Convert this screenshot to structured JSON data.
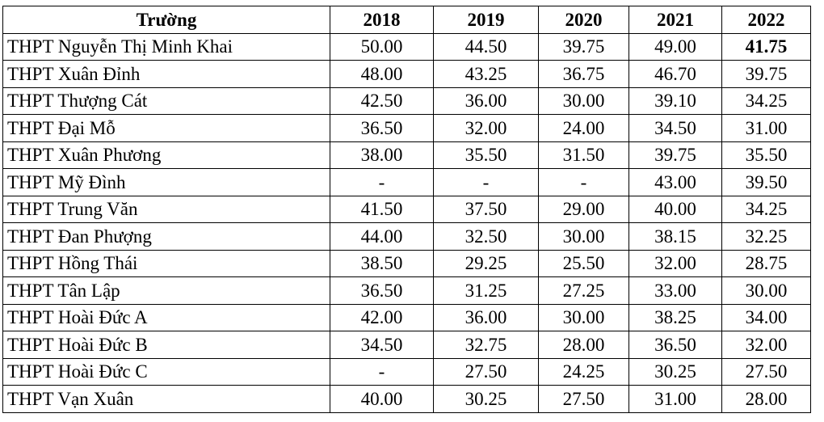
{
  "table": {
    "headers": [
      "Trường",
      "2018",
      "2019",
      "2020",
      "2021",
      "2022"
    ],
    "rows": [
      [
        "THPT Nguyễn Thị Minh Khai",
        "50.00",
        "44.50",
        "39.75",
        "49.00",
        "41.75"
      ],
      [
        "THPT Xuân Đỉnh",
        "48.00",
        "43.25",
        "36.75",
        "46.70",
        "39.75"
      ],
      [
        "THPT Thượng Cát",
        "42.50",
        "36.00",
        "30.00",
        "39.10",
        "34.25"
      ],
      [
        "THPT Đại Mỗ",
        "36.50",
        "32.00",
        "24.00",
        "34.50",
        "31.00"
      ],
      [
        "THPT Xuân Phương",
        "38.00",
        "35.50",
        "31.50",
        "39.75",
        "35.50"
      ],
      [
        "THPT Mỹ Đình",
        "-",
        "-",
        "-",
        "43.00",
        "39.50"
      ],
      [
        "THPT Trung Văn",
        "41.50",
        "37.50",
        "29.00",
        "40.00",
        "34.25"
      ],
      [
        "THPT Đan Phượng",
        "44.00",
        "32.50",
        "30.00",
        "38.15",
        "32.25"
      ],
      [
        "THPT Hồng Thái",
        "38.50",
        "29.25",
        "25.50",
        "32.00",
        "28.75"
      ],
      [
        "THPT Tân Lập",
        "36.50",
        "31.25",
        "27.25",
        "33.00",
        "30.00"
      ],
      [
        "THPT Hoài Đức A",
        "42.00",
        "36.00",
        "30.00",
        "38.25",
        "34.00"
      ],
      [
        "THPT Hoài Đức B",
        "34.50",
        "32.75",
        "28.00",
        "36.50",
        "32.00"
      ],
      [
        "THPT Hoài Đức C",
        "-",
        "27.50",
        "24.25",
        "30.25",
        "27.50"
      ],
      [
        "THPT Vạn Xuân",
        "40.00",
        "30.25",
        "27.50",
        "31.00",
        "28.00"
      ]
    ],
    "bold_cells": [
      [
        0,
        5
      ]
    ]
  }
}
